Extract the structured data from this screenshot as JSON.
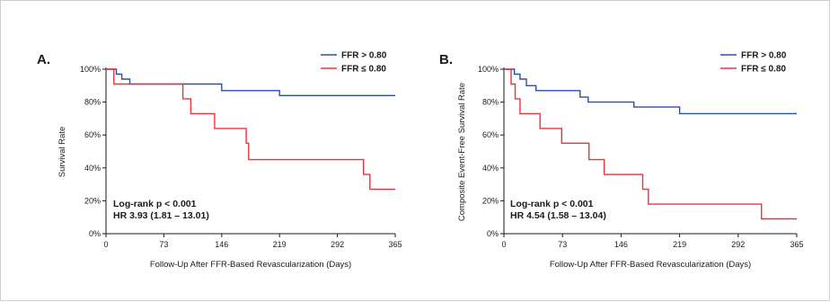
{
  "chart_data": [
    {
      "type": "line",
      "panel_label": "A.",
      "ylabel": "Survival Rate",
      "xlabel": "Follow-Up After FFR-Based Revascularization (Days)",
      "xlim": [
        0,
        365
      ],
      "ylim": [
        0,
        100
      ],
      "x_ticks": [
        0,
        73,
        146,
        219,
        292,
        365
      ],
      "y_ticks": [
        0,
        20,
        40,
        60,
        80,
        100
      ],
      "y_tick_labels": [
        "0%",
        "20%",
        "40%",
        "60%",
        "80%",
        "100%"
      ],
      "grid": false,
      "legend_position": "top-right",
      "series": [
        {
          "name": "FFR > 0.80",
          "color": "#2b4fa8",
          "steps": [
            [
              0,
              100
            ],
            [
              13,
              97
            ],
            [
              20,
              94
            ],
            [
              30,
              91
            ],
            [
              146,
              87
            ],
            [
              219,
              84
            ],
            [
              365,
              84
            ]
          ]
        },
        {
          "name": "FFR ≤ 0.80",
          "color": "#e8343c",
          "steps": [
            [
              0,
              100
            ],
            [
              10,
              91
            ],
            [
              97,
              82
            ],
            [
              107,
              73
            ],
            [
              137,
              64
            ],
            [
              177,
              55
            ],
            [
              180,
              45
            ],
            [
              325,
              36
            ],
            [
              333,
              27
            ],
            [
              365,
              27
            ]
          ]
        }
      ],
      "annotations": [
        "Log-rank p < 0.001",
        "HR 3.93 (1.81 – 13.01)"
      ]
    },
    {
      "type": "line",
      "panel_label": "B.",
      "ylabel": "Composite Event-Free Survival Rate",
      "xlabel": "Follow-Up After FFR-Based Revascularization (Days)",
      "xlim": [
        0,
        365
      ],
      "ylim": [
        0,
        100
      ],
      "x_ticks": [
        0,
        73,
        146,
        219,
        292,
        365
      ],
      "y_ticks": [
        0,
        20,
        40,
        60,
        80,
        100
      ],
      "y_tick_labels": [
        "0%",
        "20%",
        "40%",
        "60%",
        "80%",
        "100%"
      ],
      "grid": false,
      "legend_position": "top-right",
      "series": [
        {
          "name": "FFR > 0.80",
          "color": "#2b4fa8",
          "steps": [
            [
              0,
              100
            ],
            [
              13,
              97
            ],
            [
              20,
              94
            ],
            [
              28,
              90
            ],
            [
              40,
              87
            ],
            [
              95,
              83
            ],
            [
              105,
              80
            ],
            [
              162,
              77
            ],
            [
              219,
              73
            ],
            [
              365,
              73
            ]
          ]
        },
        {
          "name": "FFR ≤ 0.80",
          "color": "#e8343c",
          "steps": [
            [
              0,
              100
            ],
            [
              9,
              91
            ],
            [
              14,
              82
            ],
            [
              20,
              73
            ],
            [
              45,
              64
            ],
            [
              72,
              55
            ],
            [
              106,
              45
            ],
            [
              125,
              36
            ],
            [
              173,
              27
            ],
            [
              180,
              18
            ],
            [
              321,
              9
            ],
            [
              365,
              9
            ]
          ]
        }
      ],
      "annotations": [
        "Log-rank p < 0.001",
        "HR 4.54 (1.58 – 13.04)"
      ]
    }
  ]
}
